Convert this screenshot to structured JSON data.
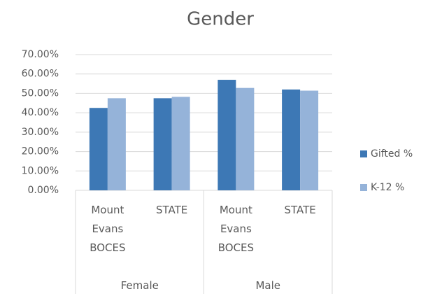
{
  "chart_data": {
    "type": "bar",
    "title": "Gender",
    "categories": [
      "Mount Evans BOCES",
      "STATE",
      "Mount Evans BOCES",
      "STATE"
    ],
    "groups": [
      "Female",
      "Male"
    ],
    "series": [
      {
        "name": "Gifted %",
        "color": "#3d78b5",
        "values": [
          42.5,
          47.5,
          57,
          52
        ]
      },
      {
        "name": "K-12 %",
        "color": "#95b3d9",
        "values": [
          47.5,
          48.2,
          52.8,
          51.4
        ]
      }
    ],
    "ylim": [
      0,
      70
    ],
    "yticks": [
      {
        "value": 0,
        "label": "0.00%"
      },
      {
        "value": 10,
        "label": "10.00%"
      },
      {
        "value": 20,
        "label": "20.00%"
      },
      {
        "value": 30,
        "label": "30.00%"
      },
      {
        "value": 40,
        "label": "40.00%"
      },
      {
        "value": 50,
        "label": "50.00%"
      },
      {
        "value": 60,
        "label": "60.00%"
      },
      {
        "value": 70,
        "label": "70.00%"
      }
    ],
    "grid": true,
    "legend": "right"
  }
}
